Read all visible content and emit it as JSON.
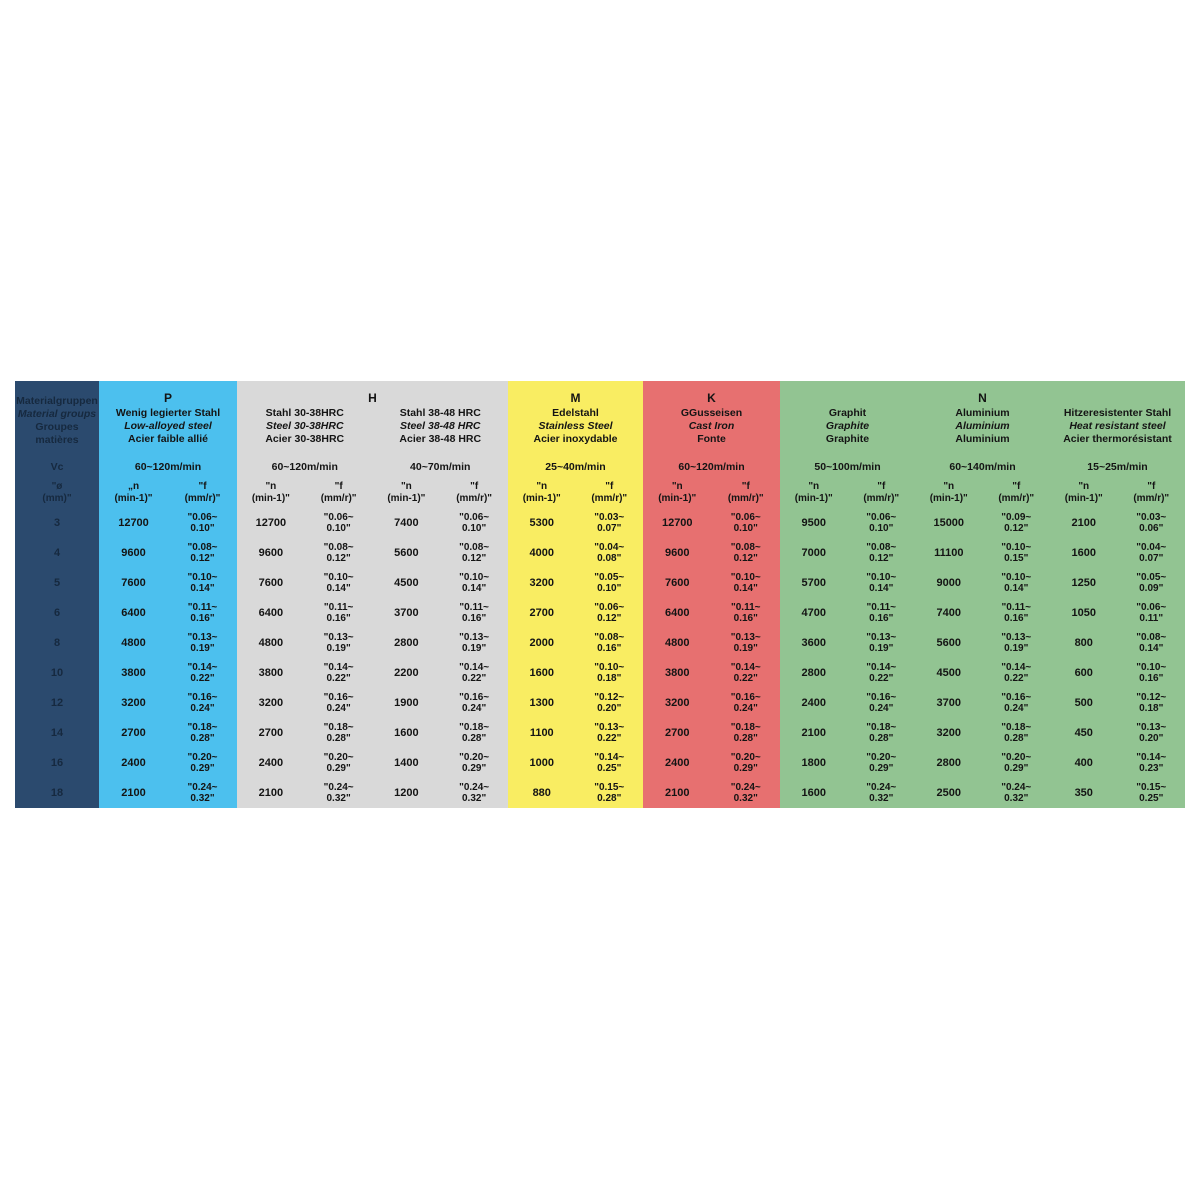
{
  "corner": {
    "bg": "#2B4A6E",
    "text_color": "#16293F",
    "title_lines": [
      "Materialgruppen",
      "Material groups",
      "Groupes matières"
    ],
    "vc_label": "Vc",
    "dia_header": "\"ø\n(mm)\"",
    "diameters": [
      "3",
      "4",
      "5",
      "6",
      "8",
      "10",
      "12",
      "14",
      "16",
      "18"
    ]
  },
  "sections": [
    {
      "letter": "P",
      "bg": "#4CC0EE",
      "columns": [
        {
          "material_de": "Wenig legierter Stahl",
          "material_en": "Low-alloyed steel",
          "material_fr": "Acier faible allié",
          "vc": "60~120m/min",
          "n_header": "„n\n(min-1)\"",
          "f_header": "\"f\n(mm/r)\"",
          "n_values": [
            "12700",
            "9600",
            "7600",
            "6400",
            "4800",
            "3800",
            "3200",
            "2700",
            "2400",
            "2100"
          ],
          "f_values": [
            "\"0.06~\n0.10\"",
            "\"0.08~\n0.12\"",
            "\"0.10~\n0.14\"",
            "\"0.11~\n0.16\"",
            "\"0.13~\n0.19\"",
            "\"0.14~\n0.22\"",
            "\"0.16~\n0.24\"",
            "\"0.18~\n0.28\"",
            "\"0.20~\n0.29\"",
            "\"0.24~\n0.32\""
          ]
        }
      ]
    },
    {
      "letter": "H",
      "bg": "#D9D9D9",
      "columns": [
        {
          "material_de": "Stahl 30-38HRC",
          "material_en": "Steel 30-38HRC",
          "material_fr": "Acier 30-38HRC",
          "vc": "60~120m/min",
          "n_header": "\"n\n(min-1)\"",
          "f_header": "\"f\n(mm/r)\"",
          "n_values": [
            "12700",
            "9600",
            "7600",
            "6400",
            "4800",
            "3800",
            "3200",
            "2700",
            "2400",
            "2100"
          ],
          "f_values": [
            "\"0.06~\n0.10\"",
            "\"0.08~\n0.12\"",
            "\"0.10~\n0.14\"",
            "\"0.11~\n0.16\"",
            "\"0.13~\n0.19\"",
            "\"0.14~\n0.22\"",
            "\"0.16~\n0.24\"",
            "\"0.18~\n0.28\"",
            "\"0.20~\n0.29\"",
            "\"0.24~\n0.32\""
          ]
        },
        {
          "material_de": "Stahl 38-48 HRC",
          "material_en": "Steel 38-48 HRC",
          "material_fr": "Acier 38-48 HRC",
          "vc": "40~70m/min",
          "n_header": "\"n\n(min-1)\"",
          "f_header": "\"f\n(mm/r)\"",
          "n_values": [
            "7400",
            "5600",
            "4500",
            "3700",
            "2800",
            "2200",
            "1900",
            "1600",
            "1400",
            "1200"
          ],
          "f_values": [
            "\"0.06~\n0.10\"",
            "\"0.08~\n0.12\"",
            "\"0.10~\n0.14\"",
            "\"0.11~\n0.16\"",
            "\"0.13~\n0.19\"",
            "\"0.14~\n0.22\"",
            "\"0.16~\n0.24\"",
            "\"0.18~\n0.28\"",
            "\"0.20~\n0.29\"",
            "\"0.24~\n0.32\""
          ]
        }
      ]
    },
    {
      "letter": "M",
      "bg": "#F9ED62",
      "columns": [
        {
          "material_de": "Edelstahl",
          "material_en": "Stainless Steel",
          "material_fr": "Acier inoxydable",
          "vc": "25~40m/min",
          "n_header": "\"n\n(min-1)\"",
          "f_header": "\"f\n(mm/r)\"",
          "n_values": [
            "5300",
            "4000",
            "3200",
            "2700",
            "2000",
            "1600",
            "1300",
            "1100",
            "1000",
            "880"
          ],
          "f_values": [
            "\"0.03~\n0.07\"",
            "\"0.04~\n0.08\"",
            "\"0.05~\n0.10\"",
            "\"0.06~\n0.12\"",
            "\"0.08~\n0.16\"",
            "\"0.10~\n0.18\"",
            "\"0.12~\n0.20\"",
            "\"0.13~\n0.22\"",
            "\"0.14~\n0.25\"",
            "\"0.15~\n0.28\""
          ]
        }
      ]
    },
    {
      "letter": "K",
      "bg": "#E77070",
      "columns": [
        {
          "material_de": "GGusseisen",
          "material_en": "Cast Iron",
          "material_fr": "Fonte",
          "vc": "60~120m/min",
          "n_header": "\"n\n(min-1)\"",
          "f_header": "\"f\n(mm/r)\"",
          "n_values": [
            "12700",
            "9600",
            "7600",
            "6400",
            "4800",
            "3800",
            "3200",
            "2700",
            "2400",
            "2100"
          ],
          "f_values": [
            "\"0.06~\n0.10\"",
            "\"0.08~\n0.12\"",
            "\"0.10~\n0.14\"",
            "\"0.11~\n0.16\"",
            "\"0.13~\n0.19\"",
            "\"0.14~\n0.22\"",
            "\"0.16~\n0.24\"",
            "\"0.18~\n0.28\"",
            "\"0.20~\n0.29\"",
            "\"0.24~\n0.32\""
          ]
        }
      ]
    },
    {
      "letter": "N",
      "bg": "#92C492",
      "columns": [
        {
          "material_de": "Graphit",
          "material_en": "Graphite",
          "material_fr": "Graphite",
          "vc": "50~100m/min",
          "n_header": "\"n\n(min-1)\"",
          "f_header": "\"f\n(mm/r)\"",
          "n_values": [
            "9500",
            "7000",
            "5700",
            "4700",
            "3600",
            "2800",
            "2400",
            "2100",
            "1800",
            "1600"
          ],
          "f_values": [
            "\"0.06~\n0.10\"",
            "\"0.08~\n0.12\"",
            "\"0.10~\n0.14\"",
            "\"0.11~\n0.16\"",
            "\"0.13~\n0.19\"",
            "\"0.14~\n0.22\"",
            "\"0.16~\n0.24\"",
            "\"0.18~\n0.28\"",
            "\"0.20~\n0.29\"",
            "\"0.24~\n0.32\""
          ]
        },
        {
          "material_de": "Aluminium",
          "material_en": "Aluminium",
          "material_fr": "Aluminium",
          "vc": "60~140m/min",
          "n_header": "\"n\n(min-1)\"",
          "f_header": "\"f\n(mm/r)\"",
          "n_values": [
            "15000",
            "11100",
            "9000",
            "7400",
            "5600",
            "4500",
            "3700",
            "3200",
            "2800",
            "2500"
          ],
          "f_values": [
            "\"0.09~\n0.12\"",
            "\"0.10~\n0.15\"",
            "\"0.10~\n0.14\"",
            "\"0.11~\n0.16\"",
            "\"0.13~\n0.19\"",
            "\"0.14~\n0.22\"",
            "\"0.16~\n0.24\"",
            "\"0.18~\n0.28\"",
            "\"0.20~\n0.29\"",
            "\"0.24~\n0.32\""
          ]
        },
        {
          "material_de": "Hitzeresistenter Stahl",
          "material_en": "Heat resistant steel",
          "material_fr": "Acier thermorésistant",
          "vc": "15~25m/min",
          "n_header": "\"n\n(min-1)\"",
          "f_header": "\"f\n(mm/r)\"",
          "n_values": [
            "2100",
            "1600",
            "1250",
            "1050",
            "800",
            "600",
            "500",
            "450",
            "400",
            "350"
          ],
          "f_values": [
            "\"0.03~\n0.06\"",
            "\"0.04~\n0.07\"",
            "\"0.05~\n0.09\"",
            "\"0.06~\n0.11\"",
            "\"0.08~\n0.14\"",
            "\"0.10~\n0.16\"",
            "\"0.12~\n0.18\"",
            "\"0.13~\n0.20\"",
            "\"0.14~\n0.23\"",
            "\"0.15~\n0.25\""
          ]
        }
      ]
    }
  ]
}
